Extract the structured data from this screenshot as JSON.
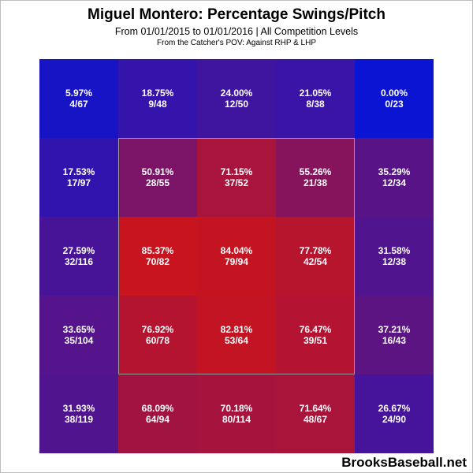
{
  "chart_data": {
    "type": "heatmap",
    "title": "Miguel Montero: Percentage Swings/Pitch",
    "subtitle": "From 01/01/2015 to 01/01/2016 | All Competition Levels",
    "subtitle2": "From the Catcher's POV:  Against RHP & LHP",
    "rows": 5,
    "cols": 5,
    "color_low": "#0a14d2",
    "color_high": "#d21414",
    "strike_zone": {
      "row_start": 1,
      "row_end": 3,
      "col_start": 1,
      "col_end": 3
    },
    "cells": [
      [
        {
          "pct": "5.97%",
          "frac": "4/67",
          "value": 5.97
        },
        {
          "pct": "18.75%",
          "frac": "9/48",
          "value": 18.75
        },
        {
          "pct": "24.00%",
          "frac": "12/50",
          "value": 24.0
        },
        {
          "pct": "21.05%",
          "frac": "8/38",
          "value": 21.05
        },
        {
          "pct": "0.00%",
          "frac": "0/23",
          "value": 0.0
        }
      ],
      [
        {
          "pct": "17.53%",
          "frac": "17/97",
          "value": 17.53
        },
        {
          "pct": "50.91%",
          "frac": "28/55",
          "value": 50.91
        },
        {
          "pct": "71.15%",
          "frac": "37/52",
          "value": 71.15
        },
        {
          "pct": "55.26%",
          "frac": "21/38",
          "value": 55.26
        },
        {
          "pct": "35.29%",
          "frac": "12/34",
          "value": 35.29
        }
      ],
      [
        {
          "pct": "27.59%",
          "frac": "32/116",
          "value": 27.59
        },
        {
          "pct": "85.37%",
          "frac": "70/82",
          "value": 85.37
        },
        {
          "pct": "84.04%",
          "frac": "79/94",
          "value": 84.04
        },
        {
          "pct": "77.78%",
          "frac": "42/54",
          "value": 77.78
        },
        {
          "pct": "31.58%",
          "frac": "12/38",
          "value": 31.58
        }
      ],
      [
        {
          "pct": "33.65%",
          "frac": "35/104",
          "value": 33.65
        },
        {
          "pct": "76.92%",
          "frac": "60/78",
          "value": 76.92
        },
        {
          "pct": "82.81%",
          "frac": "53/64",
          "value": 82.81
        },
        {
          "pct": "76.47%",
          "frac": "39/51",
          "value": 76.47
        },
        {
          "pct": "37.21%",
          "frac": "16/43",
          "value": 37.21
        }
      ],
      [
        {
          "pct": "31.93%",
          "frac": "38/119",
          "value": 31.93
        },
        {
          "pct": "68.09%",
          "frac": "64/94",
          "value": 68.09
        },
        {
          "pct": "70.18%",
          "frac": "80/114",
          "value": 70.18
        },
        {
          "pct": "71.64%",
          "frac": "48/67",
          "value": 71.64
        },
        {
          "pct": "26.67%",
          "frac": "24/90",
          "value": 26.67
        }
      ]
    ]
  },
  "footer": {
    "source": "BrooksBaseball.net"
  }
}
